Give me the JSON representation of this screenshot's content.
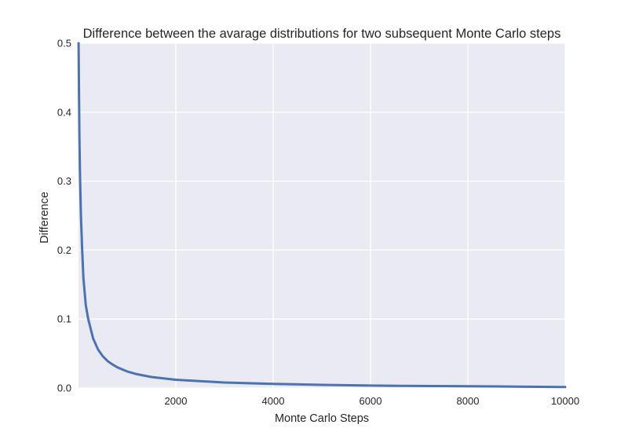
{
  "chart_data": {
    "type": "line",
    "title": "Difference between the avarage distributions for two subsequent Monte Carlo steps",
    "xlabel": "Monte Carlo Steps",
    "ylabel": "Difference",
    "xlim": [
      0,
      10000
    ],
    "ylim": [
      0,
      0.5
    ],
    "grid": true,
    "legend": "none",
    "xticks": [
      2000,
      4000,
      6000,
      8000,
      10000
    ],
    "xtick_labels": [
      "2000",
      "4000",
      "6000",
      "8000",
      "10000"
    ],
    "yticks": [
      0.0,
      0.1,
      0.2,
      0.3,
      0.4,
      0.5
    ],
    "ytick_labels": [
      "0.0",
      "0.1",
      "0.2",
      "0.3",
      "0.4",
      "0.5"
    ],
    "colors": {
      "line": "#4c72b0",
      "plot_background": "#eaeaf2",
      "grid": "#ffffff",
      "text": "#262626"
    },
    "series": [
      {
        "x": [
          1,
          10,
          20,
          30,
          50,
          75,
          100,
          150,
          200,
          300,
          400,
          500,
          600,
          700,
          800,
          1000,
          1200,
          1500,
          2000,
          2500,
          3000,
          4000,
          5000,
          6000,
          7000,
          8000,
          9000,
          10000
        ],
        "y": [
          0.5,
          0.43,
          0.36,
          0.31,
          0.25,
          0.2,
          0.16,
          0.12,
          0.1,
          0.072,
          0.056,
          0.046,
          0.039,
          0.034,
          0.03,
          0.024,
          0.02,
          0.016,
          0.012,
          0.01,
          0.008,
          0.006,
          0.0045,
          0.0035,
          0.003,
          0.0025,
          0.002,
          0.0015
        ]
      }
    ]
  }
}
